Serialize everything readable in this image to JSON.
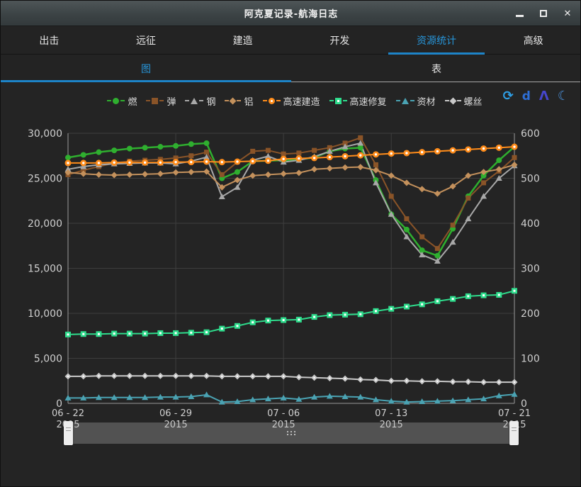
{
  "window": {
    "title": "阿克夏记录-航海日志",
    "controls": {
      "minimize": "minimize",
      "maximize": "maximize",
      "close": "close"
    }
  },
  "tabs": [
    {
      "label": "出击",
      "active": false
    },
    {
      "label": "远征",
      "active": false
    },
    {
      "label": "建造",
      "active": false
    },
    {
      "label": "开发",
      "active": false
    },
    {
      "label": "资源统计",
      "active": true
    },
    {
      "label": "高级",
      "active": false
    }
  ],
  "subtabs": [
    {
      "label": "图",
      "active": true
    },
    {
      "label": "表",
      "active": false
    }
  ],
  "toolbar_icons": [
    {
      "name": "refresh-icon",
      "glyph": "⟳",
      "color": "#2e9fe6"
    },
    {
      "name": "d-icon",
      "glyph": "d",
      "color": "#2e6fd6"
    },
    {
      "name": "compass-icon",
      "glyph": "Λ",
      "color": "#4646cc"
    },
    {
      "name": "moon-icon",
      "glyph": "☾",
      "color": "#4a8fd8"
    }
  ],
  "colors": {
    "accent_blue": "#1d84c8",
    "tab_active_text": "#2795d9",
    "background": "#242424",
    "grid": "#3e3e3e",
    "axis": "#9a9a9a",
    "tick_text": "#cfcfcf"
  },
  "chart_data": {
    "type": "line",
    "grid": true,
    "legend_position": "top",
    "categories": [
      "06-22",
      "06-23",
      "06-24",
      "06-25",
      "06-26",
      "06-27",
      "06-28",
      "06-29",
      "06-30",
      "07-01",
      "07-02",
      "07-03",
      "07-04",
      "07-05",
      "07-06",
      "07-07",
      "07-08",
      "07-09",
      "07-10",
      "07-11",
      "07-12",
      "07-13",
      "07-14",
      "07-15",
      "07-16",
      "07-17",
      "07-18",
      "07-19",
      "07-20",
      "07-21"
    ],
    "x_ticks": [
      {
        "index": 0,
        "line1": "06 - 22",
        "line2": "2015"
      },
      {
        "index": 7,
        "line1": "06 - 29",
        "line2": "2015"
      },
      {
        "index": 14,
        "line1": "07 - 06",
        "line2": "2015"
      },
      {
        "index": 21,
        "line1": "07 - 13",
        "line2": "2015"
      },
      {
        "index": 29,
        "line1": "07 - 21",
        "line2": "2015"
      }
    ],
    "left_axis": {
      "min": 0,
      "max": 30000,
      "step": 5000,
      "tick_labels": [
        "0",
        "5,000",
        "10,000",
        "15,000",
        "20,000",
        "25,000",
        "30,000"
      ]
    },
    "right_axis": {
      "min": 0,
      "max": 600,
      "step": 100,
      "tick_labels": [
        "0",
        "100",
        "200",
        "300",
        "400",
        "500",
        "600"
      ]
    },
    "series": [
      {
        "name": "燃",
        "axis": "left",
        "color": "#2faf2f",
        "marker": "circle",
        "values": [
          27300,
          27600,
          27900,
          28100,
          28300,
          28400,
          28500,
          28600,
          28800,
          28900,
          25000,
          25700,
          26900,
          26950,
          27000,
          27100,
          27300,
          28000,
          28300,
          28400,
          24800,
          21000,
          19300,
          17000,
          16400,
          19400,
          23000,
          25300,
          27000,
          28500
        ]
      },
      {
        "name": "弹",
        "axis": "left",
        "color": "#8a5428",
        "marker": "square",
        "values": [
          25400,
          25900,
          26300,
          26700,
          26900,
          27000,
          27100,
          27250,
          27500,
          27900,
          25400,
          26800,
          28000,
          28100,
          27700,
          27800,
          28100,
          28400,
          28900,
          29500,
          26500,
          23000,
          20500,
          18500,
          17200,
          19800,
          22800,
          24500,
          25800,
          27300
        ]
      },
      {
        "name": "钢",
        "axis": "left",
        "color": "#a8a8a8",
        "marker": "triangle",
        "values": [
          26000,
          26300,
          26500,
          26600,
          26650,
          26700,
          26700,
          26600,
          26900,
          27350,
          22950,
          24000,
          27000,
          27450,
          26800,
          27000,
          27400,
          28000,
          28500,
          28900,
          24500,
          21000,
          18500,
          16500,
          15800,
          17900,
          20500,
          23000,
          25000,
          26400
        ]
      },
      {
        "name": "铝",
        "axis": "left",
        "color": "#c4915c",
        "marker": "diamond",
        "values": [
          25650,
          25500,
          25400,
          25350,
          25400,
          25450,
          25500,
          25650,
          25700,
          25750,
          24000,
          24800,
          25300,
          25400,
          25500,
          25600,
          26000,
          26100,
          26200,
          26250,
          25900,
          25300,
          24500,
          23800,
          23300,
          24100,
          25300,
          25700,
          26000,
          26500
        ]
      },
      {
        "name": "高速建造",
        "axis": "right",
        "color": "#ff8c1a",
        "marker": "circle-dot",
        "values": [
          534,
          534,
          534,
          535,
          535,
          535,
          535,
          536,
          536,
          537,
          536,
          537,
          538,
          539,
          543,
          544,
          545,
          547,
          549,
          551,
          553,
          555,
          556,
          558,
          560,
          562,
          564,
          566,
          568,
          570
        ]
      },
      {
        "name": "高速修复",
        "axis": "right",
        "color": "#2edc8c",
        "marker": "square-dot",
        "values": [
          153,
          154,
          154,
          155,
          155,
          155,
          156,
          156,
          157,
          158,
          166,
          172,
          180,
          184,
          185,
          186,
          192,
          196,
          197,
          198,
          205,
          210,
          215,
          220,
          227,
          232,
          238,
          240,
          241,
          250
        ]
      },
      {
        "name": "资材",
        "axis": "right",
        "color": "#4aa3b3",
        "marker": "triangle",
        "values": [
          12,
          12,
          13,
          13,
          13,
          13,
          14,
          14,
          15,
          19,
          3,
          4,
          8,
          10,
          12,
          9,
          14,
          16,
          15,
          14,
          8,
          5,
          3,
          4,
          5,
          6,
          8,
          10,
          17,
          20
        ]
      },
      {
        "name": "螺丝",
        "axis": "right",
        "color": "#c9c9c9",
        "marker": "diamond-dot",
        "values": [
          60,
          60,
          61,
          61,
          61,
          61,
          61,
          61,
          61,
          61,
          60,
          60,
          60,
          60,
          60,
          58,
          57,
          56,
          55,
          53,
          52,
          50,
          50,
          49,
          49,
          48,
          48,
          47,
          47,
          47
        ]
      }
    ]
  }
}
